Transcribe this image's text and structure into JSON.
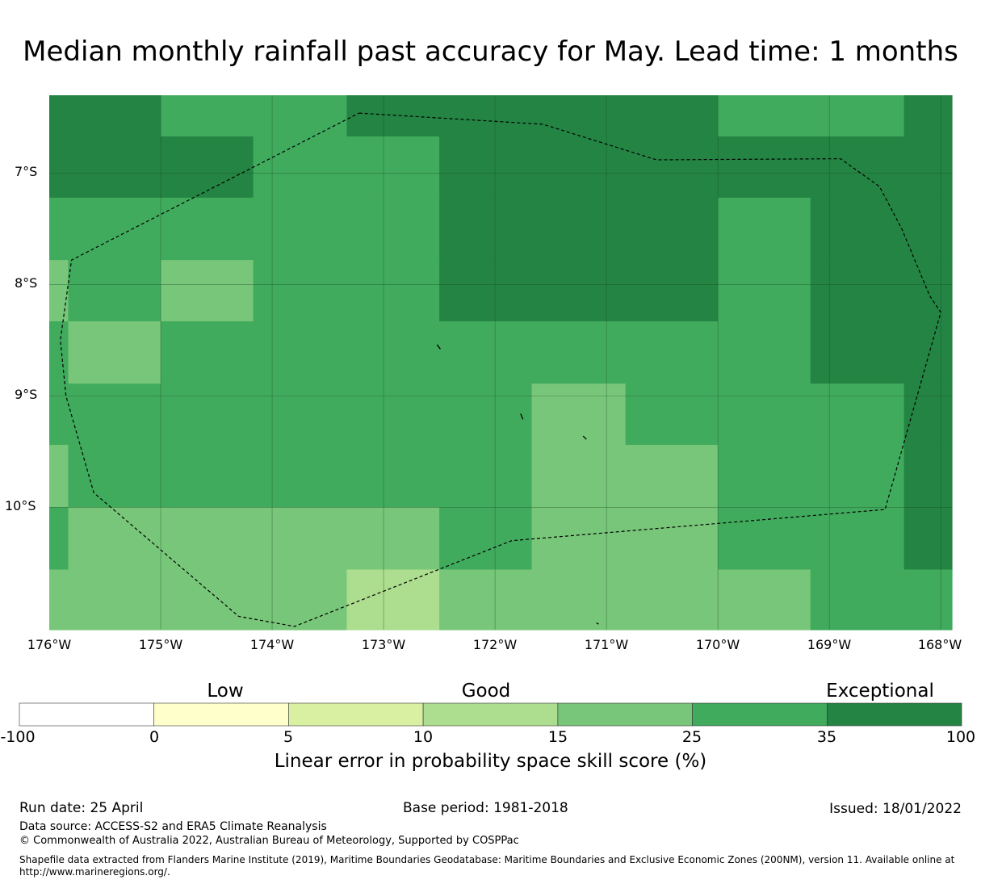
{
  "title": "Median monthly rainfall past accuracy for May. Lead time: 1 months",
  "map": {
    "lat_labels": [
      "7°S",
      "8°S",
      "9°S",
      "10°S"
    ],
    "lon_labels": [
      "176°W",
      "175°W",
      "174°W",
      "173°W",
      "172°W",
      "171°W",
      "170°W",
      "169°W",
      "168°W"
    ],
    "lon_range": [
      -176,
      -167.9
    ],
    "lat_range": [
      -6.3,
      -11.1
    ],
    "categories": [
      {
        "label": "0-5",
        "color": "#ffffcc"
      },
      {
        "label": "5-10",
        "color": "#d9f0a3"
      },
      {
        "label": "10-15",
        "color": "#addd8e"
      },
      {
        "label": "15-25",
        "color": "#78c679"
      },
      {
        "label": "25-35",
        "color": "#41ab5d"
      },
      {
        "label": "35-100",
        "color": "#238443"
      }
    ],
    "cells": [
      {
        "lon": [
          -176,
          -175
        ],
        "lat": [
          -6.3,
          -6.67
        ],
        "cat": "35-100"
      },
      {
        "lon": [
          -175,
          -173.33
        ],
        "lat": [
          -6.3,
          -6.67
        ],
        "cat": "25-35"
      },
      {
        "lon": [
          -173.33,
          -170
        ],
        "lat": [
          -6.3,
          -6.67
        ],
        "cat": "35-100"
      },
      {
        "lon": [
          -170,
          -168.33
        ],
        "lat": [
          -6.3,
          -6.67
        ],
        "cat": "25-35"
      },
      {
        "lon": [
          -168.33,
          -167.9
        ],
        "lat": [
          -6.3,
          -6.67
        ],
        "cat": "35-100"
      },
      {
        "lon": [
          -176,
          -174.17
        ],
        "lat": [
          -6.67,
          -7.22
        ],
        "cat": "35-100"
      },
      {
        "lon": [
          -174.17,
          -172.5
        ],
        "lat": [
          -6.67,
          -7.22
        ],
        "cat": "25-35"
      },
      {
        "lon": [
          -172.5,
          -167.9
        ],
        "lat": [
          -6.67,
          -7.22
        ],
        "cat": "35-100"
      },
      {
        "lon": [
          -176,
          -172.5
        ],
        "lat": [
          -7.22,
          -7.78
        ],
        "cat": "25-35"
      },
      {
        "lon": [
          -172.5,
          -170
        ],
        "lat": [
          -7.22,
          -7.78
        ],
        "cat": "35-100"
      },
      {
        "lon": [
          -170,
          -169.17
        ],
        "lat": [
          -7.22,
          -7.78
        ],
        "cat": "25-35"
      },
      {
        "lon": [
          -169.17,
          -167.9
        ],
        "lat": [
          -7.22,
          -7.78
        ],
        "cat": "35-100"
      },
      {
        "lon": [
          -176,
          -175.83
        ],
        "lat": [
          -7.78,
          -8.33
        ],
        "cat": "15-25"
      },
      {
        "lon": [
          -175.83,
          -175
        ],
        "lat": [
          -7.78,
          -8.33
        ],
        "cat": "25-35"
      },
      {
        "lon": [
          -175,
          -174.17
        ],
        "lat": [
          -7.78,
          -8.33
        ],
        "cat": "15-25"
      },
      {
        "lon": [
          -174.17,
          -172.5
        ],
        "lat": [
          -7.78,
          -8.33
        ],
        "cat": "25-35"
      },
      {
        "lon": [
          -172.5,
          -170
        ],
        "lat": [
          -7.78,
          -8.33
        ],
        "cat": "35-100"
      },
      {
        "lon": [
          -170,
          -169.17
        ],
        "lat": [
          -7.78,
          -8.33
        ],
        "cat": "25-35"
      },
      {
        "lon": [
          -169.17,
          -167.9
        ],
        "lat": [
          -7.78,
          -8.33
        ],
        "cat": "35-100"
      },
      {
        "lon": [
          -176,
          -175.83
        ],
        "lat": [
          -8.33,
          -8.89
        ],
        "cat": "25-35"
      },
      {
        "lon": [
          -175.83,
          -175
        ],
        "lat": [
          -8.33,
          -8.89
        ],
        "cat": "15-25"
      },
      {
        "lon": [
          -175,
          -169.17
        ],
        "lat": [
          -8.33,
          -8.89
        ],
        "cat": "25-35"
      },
      {
        "lon": [
          -169.17,
          -167.9
        ],
        "lat": [
          -8.33,
          -8.89
        ],
        "cat": "35-100"
      },
      {
        "lon": [
          -176,
          -171.67
        ],
        "lat": [
          -8.89,
          -9.44
        ],
        "cat": "25-35"
      },
      {
        "lon": [
          -171.67,
          -170.83
        ],
        "lat": [
          -8.89,
          -9.44
        ],
        "cat": "15-25"
      },
      {
        "lon": [
          -170.83,
          -168.33
        ],
        "lat": [
          -8.89,
          -9.44
        ],
        "cat": "25-35"
      },
      {
        "lon": [
          -168.33,
          -167.9
        ],
        "lat": [
          -8.89,
          -9.44
        ],
        "cat": "35-100"
      },
      {
        "lon": [
          -176,
          -175.83
        ],
        "lat": [
          -9.44,
          -10.0
        ],
        "cat": "15-25"
      },
      {
        "lon": [
          -175.83,
          -171.67
        ],
        "lat": [
          -9.44,
          -10.0
        ],
        "cat": "25-35"
      },
      {
        "lon": [
          -171.67,
          -170
        ],
        "lat": [
          -9.44,
          -10.0
        ],
        "cat": "15-25"
      },
      {
        "lon": [
          -170,
          -168.33
        ],
        "lat": [
          -9.44,
          -10.0
        ],
        "cat": "25-35"
      },
      {
        "lon": [
          -168.33,
          -167.9
        ],
        "lat": [
          -9.44,
          -10.0
        ],
        "cat": "35-100"
      },
      {
        "lon": [
          -176,
          -175.83
        ],
        "lat": [
          -10.0,
          -10.56
        ],
        "cat": "25-35"
      },
      {
        "lon": [
          -175.83,
          -172.5
        ],
        "lat": [
          -10.0,
          -10.56
        ],
        "cat": "15-25"
      },
      {
        "lon": [
          -172.5,
          -171.67
        ],
        "lat": [
          -10.0,
          -10.56
        ],
        "cat": "25-35"
      },
      {
        "lon": [
          -171.67,
          -170
        ],
        "lat": [
          -10.0,
          -10.56
        ],
        "cat": "15-25"
      },
      {
        "lon": [
          -170,
          -168.33
        ],
        "lat": [
          -10.0,
          -10.56
        ],
        "cat": "25-35"
      },
      {
        "lon": [
          -168.33,
          -167.9
        ],
        "lat": [
          -10.0,
          -10.56
        ],
        "cat": "35-100"
      },
      {
        "lon": [
          -176,
          -173.33
        ],
        "lat": [
          -10.56,
          -11.1
        ],
        "cat": "15-25"
      },
      {
        "lon": [
          -173.33,
          -172.5
        ],
        "lat": [
          -10.56,
          -11.1
        ],
        "cat": "10-15"
      },
      {
        "lon": [
          -172.5,
          -169.17
        ],
        "lat": [
          -10.56,
          -11.1
        ],
        "cat": "15-25"
      },
      {
        "lon": [
          -169.17,
          -167.9
        ],
        "lat": [
          -10.56,
          -11.1
        ],
        "cat": "25-35"
      }
    ],
    "eez_boundary": [
      [
        -173.22,
        -6.46
      ],
      [
        -171.57,
        -6.56
      ],
      [
        -170.55,
        -6.88
      ],
      [
        -168.9,
        -6.87
      ],
      [
        -168.55,
        -7.12
      ],
      [
        -168.35,
        -7.5
      ],
      [
        -168.1,
        -8.1
      ],
      [
        -168.0,
        -8.25
      ],
      [
        -168.5,
        -10.02
      ],
      [
        -171.85,
        -10.3
      ],
      [
        -173.8,
        -11.07
      ],
      [
        -174.3,
        -10.98
      ],
      [
        -175.6,
        -9.87
      ],
      [
        -175.85,
        -9.0
      ],
      [
        -175.9,
        -8.5
      ],
      [
        -175.8,
        -7.78
      ],
      [
        -173.22,
        -6.46
      ]
    ],
    "islands": [
      [
        [
          -172.52,
          -8.54
        ],
        [
          -172.49,
          -8.58
        ]
      ],
      [
        [
          -171.77,
          -9.16
        ],
        [
          -171.75,
          -9.21
        ]
      ],
      [
        [
          -171.21,
          -9.36
        ],
        [
          -171.18,
          -9.39
        ]
      ],
      [
        [
          -171.09,
          -11.04
        ],
        [
          -171.07,
          -11.05
        ]
      ]
    ]
  },
  "colorbar": {
    "category_labels": [
      "Low",
      "Good",
      "Exceptional"
    ],
    "bins": [
      {
        "color": "#ffffff"
      },
      {
        "color": "#ffffcc"
      },
      {
        "color": "#d9f0a3"
      },
      {
        "color": "#addd8e"
      },
      {
        "color": "#78c679"
      },
      {
        "color": "#41ab5d"
      },
      {
        "color": "#238443"
      }
    ],
    "ticks": [
      "-100",
      "0",
      "5",
      "10",
      "15",
      "25",
      "35",
      "100"
    ],
    "title": "Linear error in probability space skill score (%)"
  },
  "footer": {
    "run_date": "Run date: 25 April",
    "base_period": "Base period: 1981-2018",
    "issued": "Issued: 18/01/2022",
    "data_source": "Data source: ACCESS-S2 and ERA5 Climate Reanalysis",
    "copyright": "© Commonwealth of Australia 2022, Australian Bureau of Meteorology, Supported by COSPPac",
    "shapefile_line1": "Shapefile data extracted from Flanders Marine Institute (2019), Maritime Boundaries Geodatabase: Maritime Boundaries and Exclusive Economic Zones (200NM), version 11. Available online at",
    "shapefile_line2": "http://www.marineregions.org/."
  }
}
